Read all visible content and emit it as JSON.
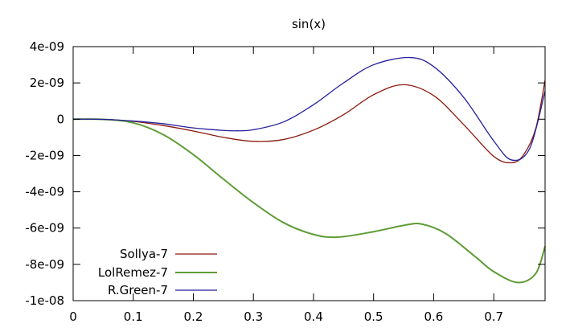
{
  "chart_data": {
    "type": "line",
    "title": "sin(x)",
    "xlabel": "",
    "ylabel": "",
    "xlim": [
      0,
      0.7854
    ],
    "ylim": [
      -1e-08,
      4e-09
    ],
    "x_ticks": [
      0,
      0.1,
      0.2,
      0.3,
      0.4,
      0.5,
      0.6,
      0.7
    ],
    "x_tick_labels": [
      "0",
      "0.1",
      "0.2",
      "0.3",
      "0.4",
      "0.5",
      "0.6",
      "0.7"
    ],
    "y_ticks": [
      4e-09,
      2e-09,
      0,
      -2e-09,
      -4e-09,
      -6e-09,
      -8e-09,
      -1e-08
    ],
    "y_tick_labels": [
      "4e-09",
      "2e-09",
      "0",
      "-2e-09",
      "-4e-09",
      "-6e-09",
      "-8e-09",
      "-1e-08"
    ],
    "grid": false,
    "legend_position": "bottom-left",
    "series": [
      {
        "name": "Sollya-7",
        "color": "#8b1a0e",
        "x": [
          0,
          0.05,
          0.1,
          0.15,
          0.2,
          0.25,
          0.3,
          0.35,
          0.4,
          0.45,
          0.5,
          0.55,
          0.6,
          0.65,
          0.7,
          0.73,
          0.75,
          0.77,
          0.7854
        ],
        "y": [
          0,
          -1e-11,
          -1.2e-10,
          -3.5e-10,
          -6.5e-10,
          -1e-09,
          -1.22e-09,
          -1.12e-09,
          -6e-10,
          2.5e-10,
          1.35e-09,
          1.9e-09,
          1.3e-09,
          -3e-10,
          -2.05e-09,
          -2.4e-09,
          -1.95e-09,
          -5e-10,
          2.15e-09
        ]
      },
      {
        "name": "LolRemez-7",
        "color": "#5e9c36",
        "x": [
          0,
          0.05,
          0.1,
          0.15,
          0.2,
          0.25,
          0.3,
          0.35,
          0.4,
          0.44,
          0.5,
          0.55,
          0.58,
          0.62,
          0.67,
          0.7,
          0.74,
          0.77,
          0.7854
        ],
        "y": [
          0,
          -1e-11,
          -2e-10,
          -8.5e-10,
          -1.95e-09,
          -3.3e-09,
          -4.6e-09,
          -5.7e-09,
          -6.35e-09,
          -6.5e-09,
          -6.2e-09,
          -5.85e-09,
          -5.78e-09,
          -6.3e-09,
          -7.6e-09,
          -8.4e-09,
          -9e-09,
          -8.5e-09,
          -7e-09
        ]
      },
      {
        "name": "R.Green-7",
        "color": "#241f9c",
        "x": [
          0,
          0.05,
          0.1,
          0.15,
          0.2,
          0.25,
          0.27,
          0.3,
          0.35,
          0.4,
          0.45,
          0.5,
          0.56,
          0.6,
          0.65,
          0.7,
          0.73,
          0.76,
          0.7854
        ],
        "y": [
          0,
          -1e-11,
          -1e-10,
          -2.5e-10,
          -4.8e-10,
          -6.2e-10,
          -6.4e-10,
          -5.8e-10,
          -1.5e-10,
          8e-10,
          2e-09,
          3e-09,
          3.4e-09,
          2.9e-09,
          1.2e-09,
          -1.2e-09,
          -2.25e-09,
          -1.6e-09,
          1.55e-09
        ]
      }
    ]
  }
}
